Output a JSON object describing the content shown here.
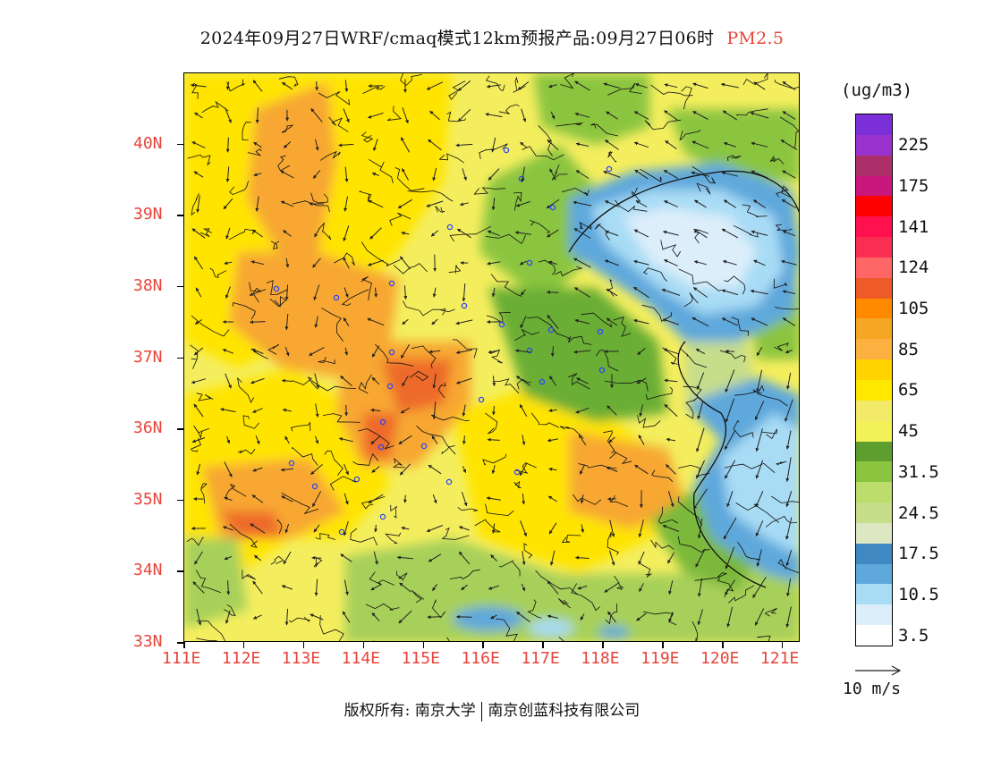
{
  "title": {
    "main": "2024年09月27日WRF/cmaq模式12km预报产品:09月27日06时",
    "variable": "PM2.5"
  },
  "map": {
    "lat_labels": [
      "40N",
      "39N",
      "38N",
      "37N",
      "36N",
      "35N",
      "34N",
      "33N"
    ],
    "lon_labels": [
      "111E",
      "112E",
      "113E",
      "114E",
      "115E",
      "116E",
      "117E",
      "118E",
      "119E",
      "120E",
      "121E"
    ],
    "lon_range": [
      111,
      121.3
    ],
    "lat_range": [
      33,
      41
    ],
    "land_color": "#f7f06a",
    "sea_color": "#9dd7ef"
  },
  "legend": {
    "unit": "(ug/m3)",
    "levels": [
      {
        "color": "#7b2fd9"
      },
      {
        "color": "#9a32cf",
        "label": "225"
      },
      {
        "color": "#ac2f6a"
      },
      {
        "color": "#c8187d",
        "label": "175"
      },
      {
        "color": "#ff0000"
      },
      {
        "color": "#ff1150",
        "label": "141"
      },
      {
        "color": "#fa2e52"
      },
      {
        "color": "#ff6666",
        "label": "124"
      },
      {
        "color": "#ee5a28"
      },
      {
        "color": "#ff8a00",
        "label": "105"
      },
      {
        "color": "#f5a623"
      },
      {
        "color": "#fbb040",
        "label": "85"
      },
      {
        "color": "#ffd200"
      },
      {
        "color": "#ffe800",
        "label": "65"
      },
      {
        "color": "#f3ea68"
      },
      {
        "color": "#f2f258",
        "label": "45"
      },
      {
        "color": "#5e9e2e"
      },
      {
        "color": "#8bc540",
        "label": "31.5"
      },
      {
        "color": "#bcdc6c"
      },
      {
        "color": "#c6dd8a",
        "label": "24.5"
      },
      {
        "color": "#dde8c2"
      },
      {
        "color": "#3f88c2",
        "label": "17.5"
      },
      {
        "color": "#5ea8dc"
      },
      {
        "color": "#a8dcf5",
        "label": "10.5"
      },
      {
        "color": "#dceefa"
      },
      {
        "color": "#ffffff",
        "label": "3.5"
      }
    ]
  },
  "wind_reference": "10  m/s",
  "footer": {
    "copyright": "版权所有: 南京大学",
    "company": "南京创蓝科技有限公司"
  }
}
